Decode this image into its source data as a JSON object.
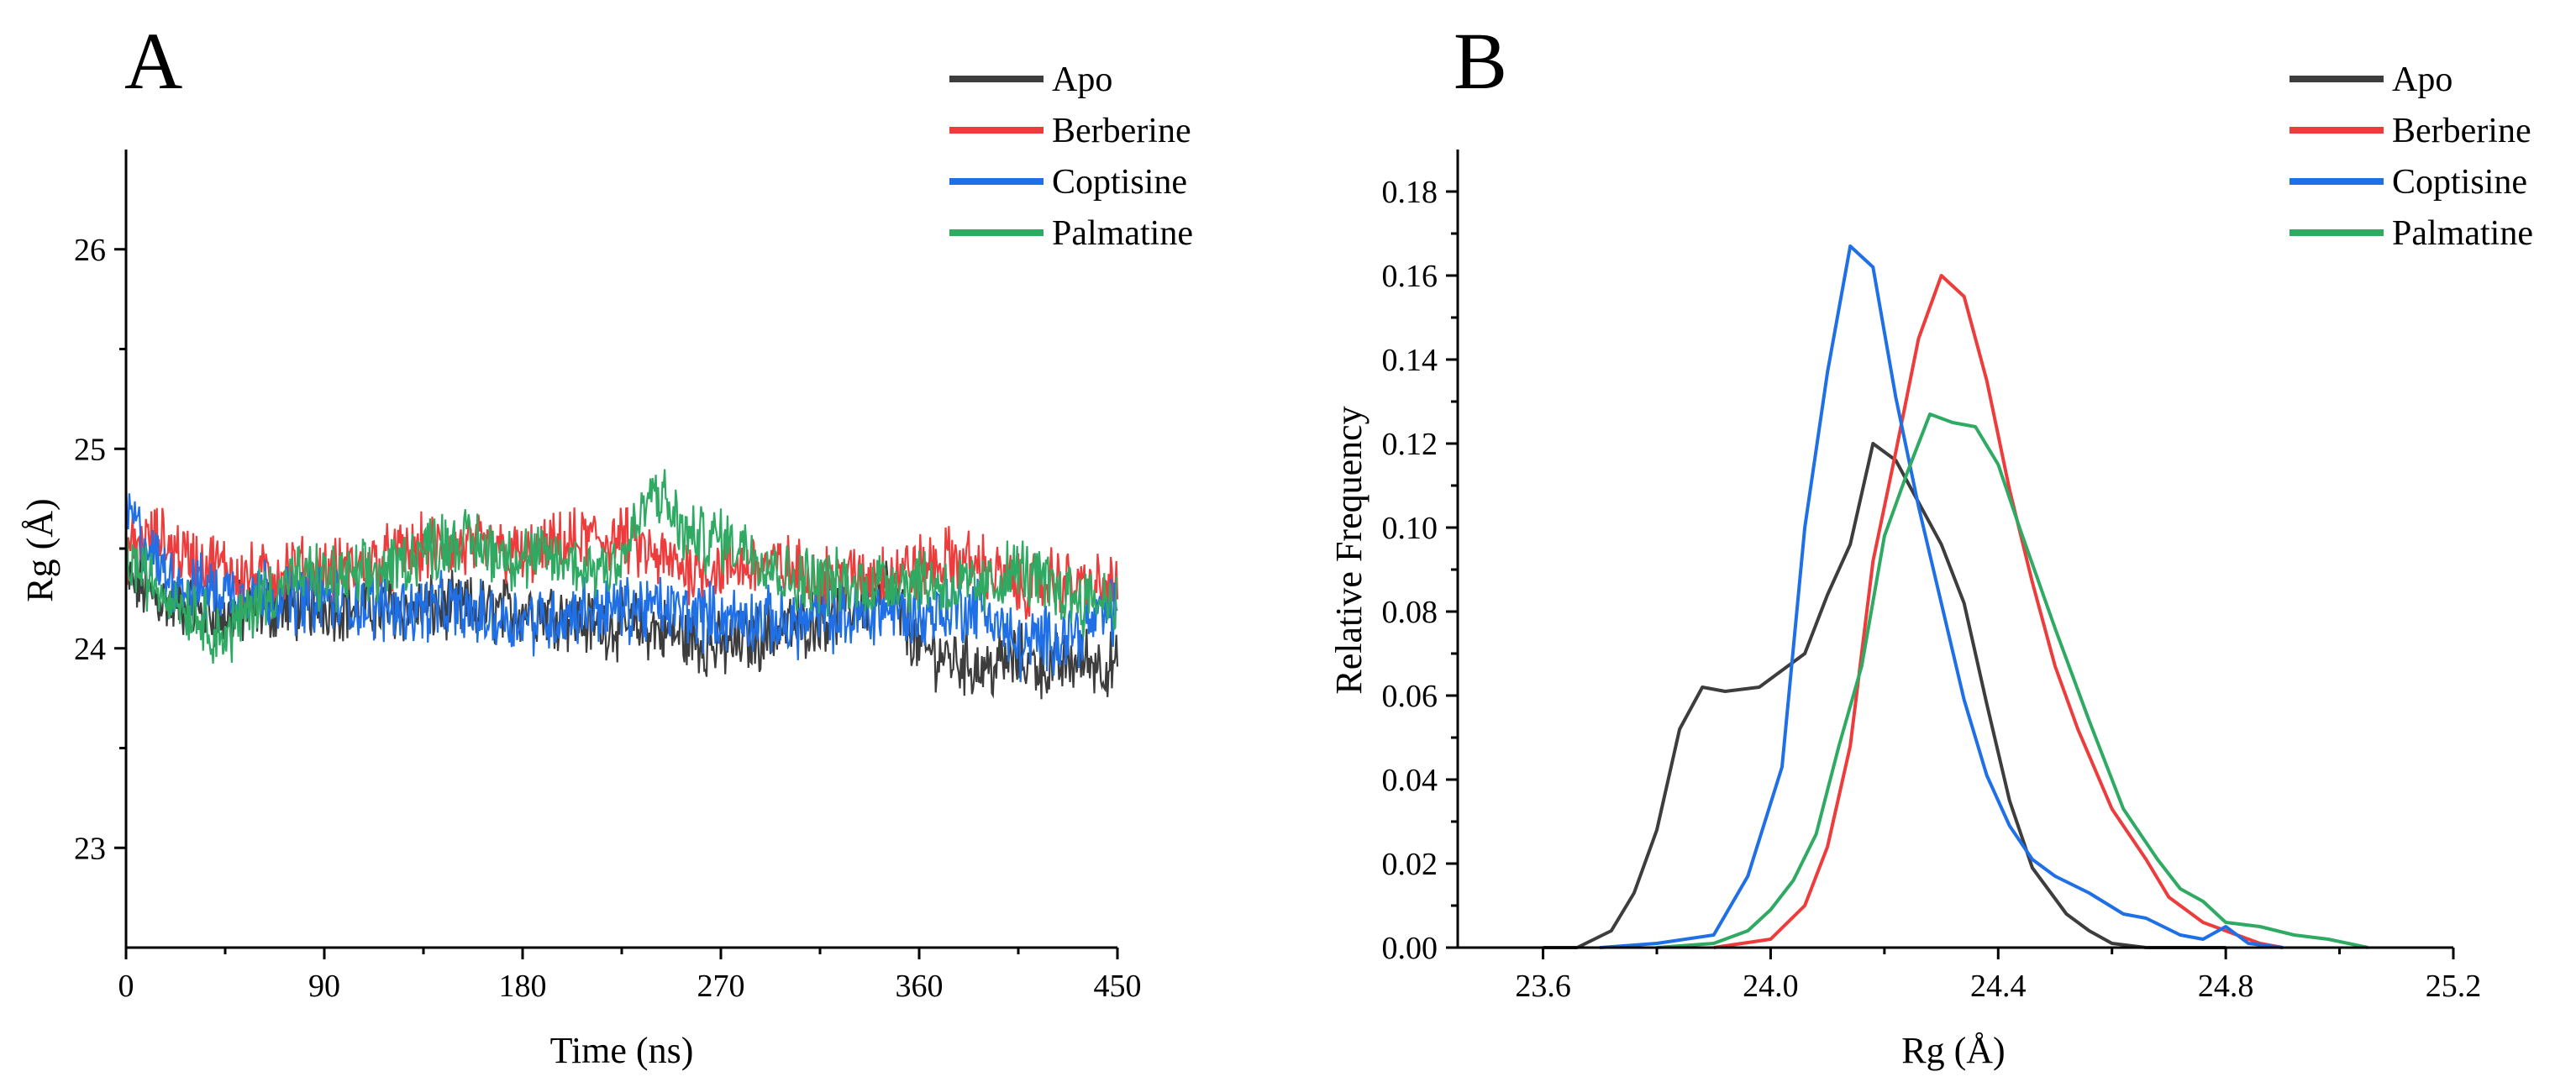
{
  "colors": {
    "Apo": "#3d3d3d",
    "Berberine": "#ee3b3b",
    "Coptisine": "#1f6fe6",
    "Palmatine": "#2eaa63"
  },
  "chart_data": [
    {
      "panel": "A",
      "type": "line",
      "xlabel": "Time (ns)",
      "ylabel": "Rg (Å)",
      "xlim": [
        0,
        450
      ],
      "ylim": [
        22.5,
        26.5
      ],
      "xticks": [
        "0",
        "90",
        "180",
        "270",
        "360",
        "450"
      ],
      "yticks": [
        "23",
        "24",
        "25",
        "26"
      ],
      "legend": [
        "Apo",
        "Berberine",
        "Coptisine",
        "Palmatine"
      ],
      "series": [
        {
          "name": "Apo",
          "x": [
            0,
            15,
            30,
            45,
            60,
            75,
            90,
            105,
            120,
            135,
            150,
            165,
            180,
            195,
            210,
            225,
            240,
            255,
            270,
            285,
            300,
            315,
            330,
            345,
            360,
            375,
            390,
            405,
            420,
            435,
            450
          ],
          "values": [
            24.35,
            24.25,
            24.2,
            24.15,
            24.2,
            24.2,
            24.22,
            24.2,
            24.2,
            24.2,
            24.2,
            24.18,
            24.2,
            24.18,
            24.12,
            24.12,
            24.1,
            24.05,
            24.0,
            24.05,
            24.1,
            24.15,
            24.2,
            24.3,
            24.0,
            23.95,
            23.9,
            23.95,
            23.9,
            23.95,
            23.9
          ]
        },
        {
          "name": "Berberine",
          "x": [
            0,
            15,
            30,
            45,
            60,
            75,
            90,
            105,
            120,
            135,
            150,
            165,
            180,
            195,
            210,
            225,
            240,
            255,
            270,
            285,
            300,
            315,
            330,
            345,
            360,
            375,
            390,
            405,
            420,
            435,
            450
          ],
          "values": [
            24.5,
            24.55,
            24.45,
            24.4,
            24.35,
            24.4,
            24.38,
            24.4,
            24.45,
            24.5,
            24.5,
            24.5,
            24.45,
            24.5,
            24.55,
            24.55,
            24.45,
            24.4,
            24.4,
            24.42,
            24.4,
            24.35,
            24.35,
            24.38,
            24.4,
            24.45,
            24.4,
            24.3,
            24.35,
            24.3,
            24.3
          ]
        },
        {
          "name": "Coptisine",
          "x": [
            0,
            15,
            30,
            45,
            60,
            75,
            90,
            105,
            120,
            135,
            150,
            165,
            180,
            195,
            210,
            225,
            240,
            255,
            270,
            285,
            300,
            315,
            330,
            345,
            360,
            375,
            390,
            405,
            420,
            435,
            450
          ],
          "values": [
            24.7,
            24.4,
            24.3,
            24.28,
            24.3,
            24.25,
            24.25,
            24.22,
            24.2,
            24.2,
            24.2,
            24.15,
            24.15,
            24.15,
            24.2,
            24.2,
            24.2,
            24.18,
            24.15,
            24.15,
            24.12,
            24.15,
            24.15,
            24.2,
            24.15,
            24.2,
            24.2,
            24.0,
            24.05,
            24.1,
            24.2
          ]
        },
        {
          "name": "Palmatine",
          "x": [
            0,
            15,
            30,
            45,
            60,
            75,
            90,
            105,
            120,
            135,
            150,
            165,
            180,
            195,
            210,
            225,
            240,
            255,
            270,
            285,
            300,
            315,
            330,
            345,
            360,
            375,
            390,
            405,
            420,
            435,
            450
          ],
          "values": [
            24.45,
            24.3,
            24.2,
            24.05,
            24.25,
            24.35,
            24.35,
            24.35,
            24.4,
            24.5,
            24.55,
            24.5,
            24.45,
            24.45,
            24.4,
            24.45,
            24.8,
            24.55,
            24.55,
            24.5,
            24.35,
            24.35,
            24.3,
            24.35,
            24.35,
            24.3,
            24.3,
            24.4,
            24.3,
            24.25,
            24.25
          ]
        }
      ]
    },
    {
      "panel": "B",
      "type": "line",
      "xlabel": "Rg (Å)",
      "ylabel": "Relative Frequency",
      "xlim": [
        23.45,
        25.2
      ],
      "ylim": [
        0,
        0.19
      ],
      "xticks": [
        "23.6",
        "24.0",
        "24.4",
        "24.8",
        "25.2"
      ],
      "yticks": [
        "0.00",
        "0.02",
        "0.04",
        "0.06",
        "0.08",
        "0.10",
        "0.12",
        "0.14",
        "0.16",
        "0.18"
      ],
      "legend": [
        "Apo",
        "Berberine",
        "Coptisine",
        "Palmatine"
      ],
      "series": [
        {
          "name": "Apo",
          "x": [
            23.6,
            23.66,
            23.72,
            23.76,
            23.8,
            23.84,
            23.88,
            23.92,
            23.98,
            24.02,
            24.06,
            24.1,
            24.14,
            24.18,
            24.22,
            24.26,
            24.3,
            24.34,
            24.38,
            24.42,
            24.46,
            24.52,
            24.56,
            24.6,
            24.66,
            24.7,
            24.8
          ],
          "values": [
            0,
            0,
            0.004,
            0.013,
            0.028,
            0.052,
            0.062,
            0.061,
            0.062,
            0.066,
            0.07,
            0.084,
            0.096,
            0.12,
            0.116,
            0.106,
            0.096,
            0.082,
            0.058,
            0.035,
            0.019,
            0.008,
            0.004,
            0.001,
            0,
            0,
            0
          ]
        },
        {
          "name": "Berberine",
          "x": [
            23.9,
            24.0,
            24.06,
            24.1,
            24.14,
            24.18,
            24.22,
            24.26,
            24.3,
            24.34,
            24.38,
            24.42,
            24.46,
            24.5,
            24.54,
            24.6,
            24.66,
            24.7,
            24.76,
            24.8,
            24.86,
            24.9
          ],
          "values": [
            0,
            0.002,
            0.01,
            0.024,
            0.048,
            0.092,
            0.118,
            0.145,
            0.16,
            0.155,
            0.135,
            0.109,
            0.087,
            0.067,
            0.052,
            0.033,
            0.021,
            0.012,
            0.006,
            0.004,
            0.001,
            0
          ]
        },
        {
          "name": "Coptisine",
          "x": [
            23.7,
            23.8,
            23.9,
            23.96,
            24.02,
            24.06,
            24.1,
            24.14,
            24.18,
            24.22,
            24.26,
            24.3,
            24.34,
            24.38,
            24.42,
            24.46,
            24.5,
            24.56,
            24.62,
            24.66,
            24.72,
            24.76,
            24.8,
            24.84,
            24.9
          ],
          "values": [
            0,
            0.001,
            0.003,
            0.017,
            0.043,
            0.1,
            0.137,
            0.167,
            0.162,
            0.131,
            0.105,
            0.082,
            0.059,
            0.041,
            0.029,
            0.021,
            0.017,
            0.013,
            0.008,
            0.007,
            0.003,
            0.002,
            0.005,
            0.001,
            0
          ]
        },
        {
          "name": "Palmatine",
          "x": [
            23.8,
            23.9,
            23.96,
            24.0,
            24.04,
            24.08,
            24.12,
            24.16,
            24.2,
            24.24,
            24.28,
            24.32,
            24.36,
            24.4,
            24.44,
            24.5,
            24.56,
            24.62,
            24.68,
            24.72,
            24.76,
            24.8,
            24.86,
            24.92,
            24.98,
            25.05
          ],
          "values": [
            0,
            0.001,
            0.004,
            0.009,
            0.016,
            0.027,
            0.048,
            0.067,
            0.098,
            0.113,
            0.127,
            0.125,
            0.124,
            0.115,
            0.099,
            0.076,
            0.054,
            0.033,
            0.021,
            0.014,
            0.011,
            0.006,
            0.005,
            0.003,
            0.002,
            0
          ]
        }
      ]
    }
  ]
}
